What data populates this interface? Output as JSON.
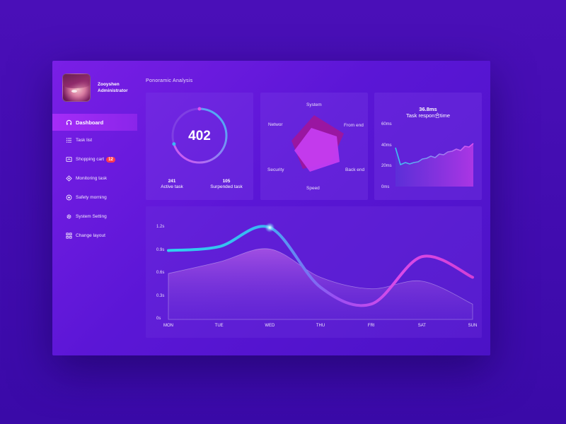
{
  "profile": {
    "name": "Zooyshen",
    "role": "Administrator"
  },
  "sidebar": {
    "items": [
      {
        "label": "Dashboard",
        "icon": "headset-icon",
        "active": true
      },
      {
        "label": "Task list",
        "icon": "list-icon"
      },
      {
        "label": "Shopping cart",
        "icon": "cart-icon",
        "badge": "12"
      },
      {
        "label": "Monitoring task",
        "icon": "crosshair-icon"
      },
      {
        "label": "Safety morning",
        "icon": "shield-icon"
      },
      {
        "label": "System Setting",
        "icon": "gear-icon"
      },
      {
        "label": "Change layout",
        "icon": "grid-icon"
      }
    ]
  },
  "main": {
    "section_title": "Ponoramic Analysis"
  },
  "gauge": {
    "value": "402",
    "fraction": 0.7,
    "stats": [
      {
        "value": "241",
        "label": "Active task"
      },
      {
        "value": "105",
        "label": "Surpended task"
      }
    ]
  },
  "radar": {
    "labels": {
      "system": "System",
      "front": "From end",
      "back": "Back end",
      "speed": "Speed",
      "security": "Security",
      "network": "Networ"
    }
  },
  "response": {
    "value": "36.8ms",
    "title": "Task respon合time",
    "yticks": [
      "60ms",
      "40ms",
      "20ms",
      "0ms"
    ]
  },
  "colors": {
    "accent": "#a52cf7",
    "cyan": "#39c6f0",
    "magenta": "#d94ae8",
    "badge": "#ff3b4e"
  },
  "chart_data": {
    "type": "line",
    "categories": [
      "MON",
      "TUE",
      "WED",
      "THU",
      "FRI",
      "SAT",
      "SUN"
    ],
    "ylabels": [
      "1.2s",
      "0.9s",
      "0.6s",
      "0.3s",
      "0s"
    ],
    "ylim": [
      0,
      1.2
    ],
    "series": [
      {
        "values": [
          0.9,
          0.95,
          1.2,
          0.42,
          0.2,
          0.82,
          0.55
        ]
      },
      {
        "values": [
          0.6,
          0.75,
          0.92,
          0.55,
          0.4,
          0.5,
          0.2
        ]
      }
    ]
  }
}
